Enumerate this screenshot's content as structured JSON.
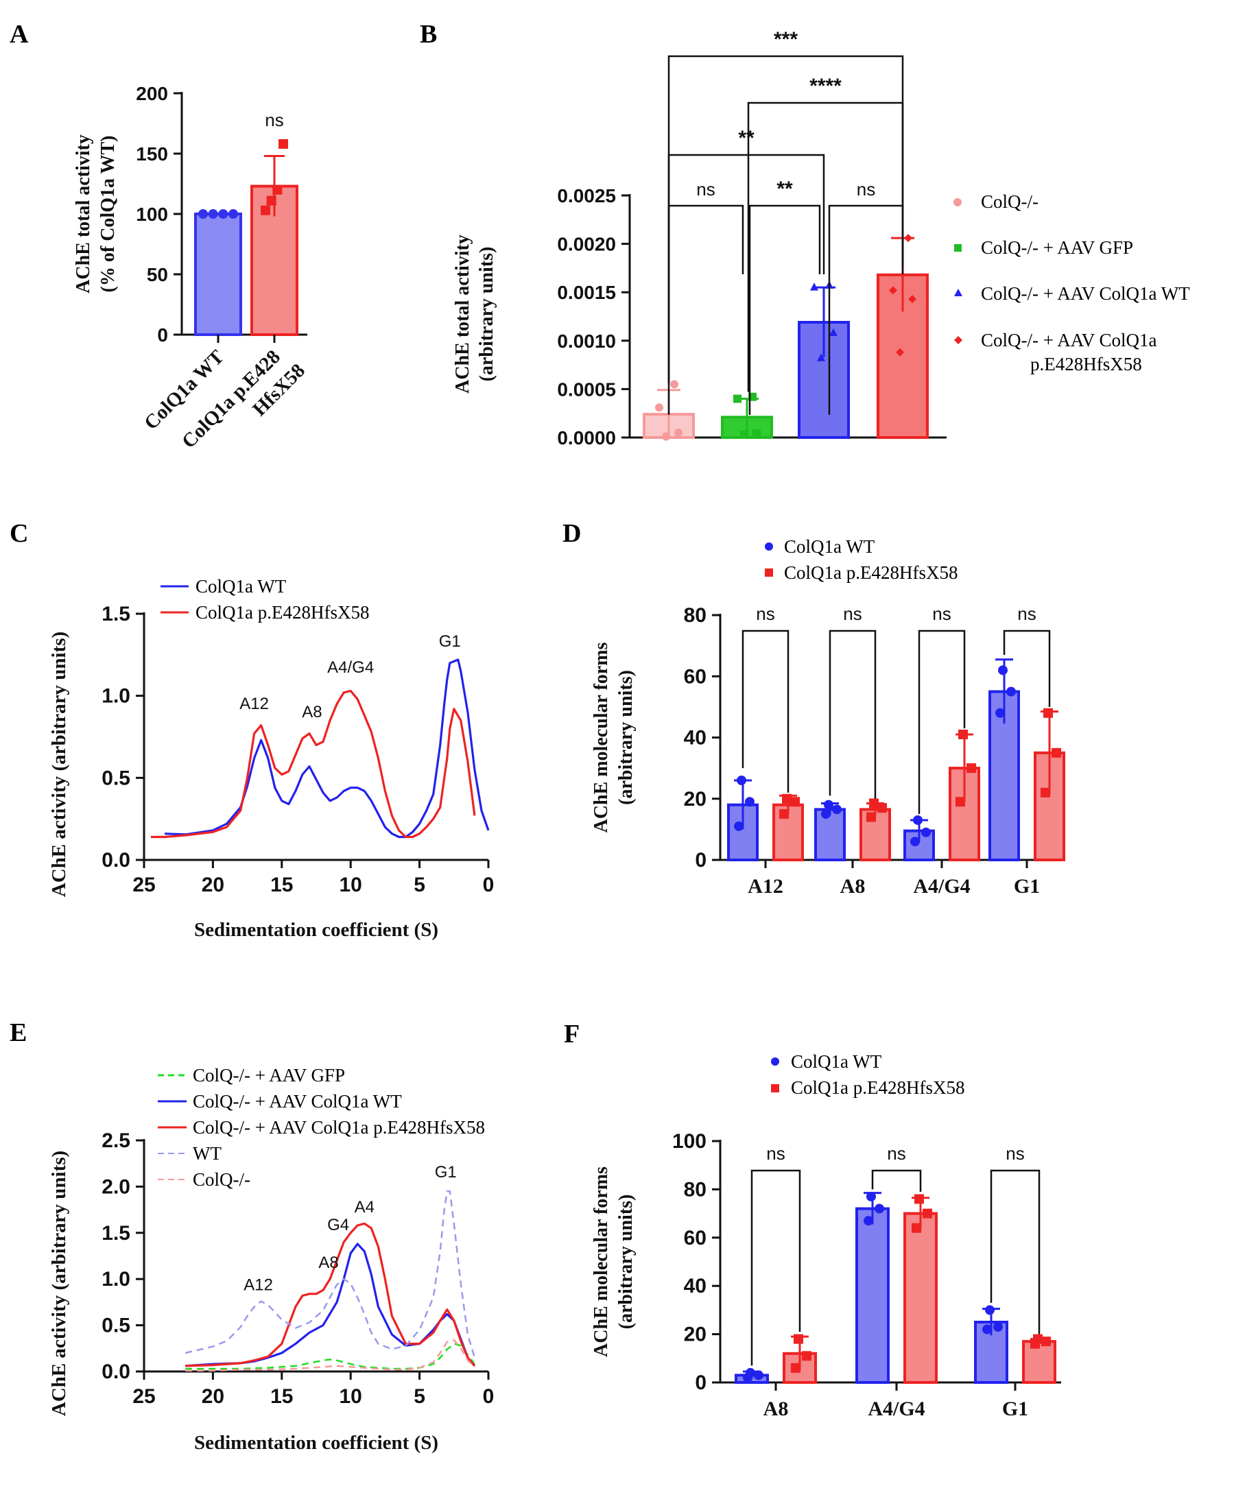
{
  "chart_data": [
    {
      "panel": "A",
      "type": "bar",
      "categories": [
        "ColQ1a WT",
        "ColQ1a p.E428 HfsX58"
      ],
      "category_lines": [
        [
          "ColQ1a WT"
        ],
        [
          "ColQ1a p.E428",
          "HfsX58"
        ]
      ],
      "values": [
        100,
        123
      ],
      "errors": [
        0,
        25
      ],
      "points": [
        [
          100,
          100,
          100,
          100
        ],
        [
          103,
          111,
          120,
          158
        ]
      ],
      "colors": [
        "#3333ee",
        "#ee2222"
      ],
      "fills": [
        "#8a8af5",
        "#f58a8a"
      ],
      "ylabel": [
        "AChE total activity",
        "(% of ColQ1a WT)"
      ],
      "ylim": [
        0,
        200
      ],
      "yticks": [
        "0",
        "50",
        "100",
        "150",
        "200"
      ],
      "significance": [
        {
          "bar": 1,
          "label": "ns"
        }
      ]
    },
    {
      "panel": "B",
      "type": "bar",
      "categories": [
        "ColQ-/-",
        "ColQ-/- + AAV GFP",
        "ColQ-/- + AAV ColQ1a WT",
        "ColQ-/- + AAV ColQ1a p.E428HfsX58"
      ],
      "legend": [
        [
          "ColQ-/-"
        ],
        [
          "ColQ-/- + AAV GFP"
        ],
        [
          "ColQ-/- + AAV ColQ1a WT"
        ],
        [
          "ColQ-/- + AAV ColQ1a",
          "p.E428HfsX58"
        ]
      ],
      "values": [
        0.00024,
        0.00021,
        0.00119,
        0.00168
      ],
      "errors": [
        0.00025,
        0.00019,
        0.00036,
        0.00038
      ],
      "points": [
        [
          1e-05,
          5e-05,
          0.00031,
          0.00055
        ],
        [
          3e-05,
          4e-05,
          0.0004,
          0.00042
        ],
        [
          0.00082,
          0.00108,
          0.00155,
          0.00157
        ],
        [
          0.00088,
          0.00143,
          0.00152,
          0.00206
        ]
      ],
      "colors": [
        "#f59a9a",
        "#22bb22",
        "#2222ee",
        "#ee2222"
      ],
      "fills": [
        "#fac8c8",
        "#30cc30",
        "#7070f0",
        "#f57878"
      ],
      "markers": [
        "circle",
        "square",
        "triangle",
        "diamond"
      ],
      "ylabel": [
        "AChE total activity",
        "(arbitrary units)"
      ],
      "ylim": [
        0,
        0.0025
      ],
      "yticks": [
        "0.0000",
        "0.0005",
        "0.0010",
        "0.0015",
        "0.0020",
        "0.0025"
      ],
      "comparisons": [
        {
          "from": 0,
          "to": 1,
          "label": "ns"
        },
        {
          "from": 1,
          "to": 2,
          "label": "**"
        },
        {
          "from": 2,
          "to": 3,
          "label": "ns"
        },
        {
          "from": 0,
          "to": 2,
          "label": "**"
        },
        {
          "from": 1,
          "to": 3,
          "label": "****"
        },
        {
          "from": 0,
          "to": 3,
          "label": "***"
        }
      ]
    },
    {
      "panel": "C",
      "type": "line",
      "xlabel": "Sedimentation coefficient (S)",
      "ylabel": "AChE activity (arbitrary units)",
      "xlim": [
        25,
        0
      ],
      "ylim": [
        0,
        1.5
      ],
      "xticks": [
        "25",
        "20",
        "15",
        "10",
        "5",
        "0"
      ],
      "yticks": [
        "0.0",
        "0.5",
        "1.0",
        "1.5"
      ],
      "series": [
        {
          "name": "ColQ1a WT",
          "color": "#2222ee",
          "dashed": false,
          "x": [
            23.5,
            22,
            20,
            19,
            18,
            17.5,
            17,
            16.5,
            16,
            15.5,
            15,
            14.5,
            14,
            13.5,
            13,
            12.5,
            12,
            11.5,
            11,
            10.5,
            10,
            9.5,
            9,
            8.5,
            8,
            7.5,
            7,
            6.5,
            6,
            5.5,
            5,
            4.5,
            4,
            3.5,
            3.2,
            3,
            2.8,
            2.5,
            2.2,
            2,
            1.5,
            1,
            0.5,
            0
          ],
          "y": [
            0.16,
            0.155,
            0.18,
            0.22,
            0.32,
            0.45,
            0.62,
            0.73,
            0.62,
            0.44,
            0.36,
            0.34,
            0.42,
            0.52,
            0.57,
            0.49,
            0.41,
            0.36,
            0.38,
            0.42,
            0.44,
            0.44,
            0.42,
            0.36,
            0.28,
            0.2,
            0.16,
            0.14,
            0.14,
            0.17,
            0.22,
            0.3,
            0.4,
            0.7,
            0.95,
            1.1,
            1.2,
            1.21,
            1.22,
            1.15,
            0.9,
            0.55,
            0.3,
            0.18
          ]
        },
        {
          "name": "ColQ1a p.E428HfsX58",
          "color": "#ee2222",
          "dashed": false,
          "x": [
            24.5,
            23.5,
            22,
            20,
            19,
            18,
            17.5,
            17,
            16.5,
            16,
            15.5,
            15,
            14.5,
            14,
            13.5,
            13,
            12.5,
            12,
            11.5,
            11,
            10.5,
            10,
            9.5,
            9,
            8.5,
            8,
            7.5,
            7,
            6.5,
            6,
            5.5,
            5,
            4.5,
            4,
            3.5,
            3,
            2.8,
            2.5,
            2,
            1.5,
            1
          ],
          "y": [
            0.14,
            0.14,
            0.15,
            0.17,
            0.2,
            0.3,
            0.5,
            0.77,
            0.82,
            0.7,
            0.56,
            0.52,
            0.54,
            0.64,
            0.74,
            0.77,
            0.7,
            0.72,
            0.85,
            0.95,
            1.02,
            1.03,
            0.98,
            0.88,
            0.78,
            0.62,
            0.42,
            0.27,
            0.18,
            0.14,
            0.14,
            0.16,
            0.2,
            0.25,
            0.32,
            0.62,
            0.8,
            0.92,
            0.85,
            0.6,
            0.27
          ]
        }
      ],
      "peak_labels": [
        {
          "label": "A12",
          "x": 17.0,
          "y": 0.92
        },
        {
          "label": "A8",
          "x": 12.8,
          "y": 0.87
        },
        {
          "label": "A4/G4",
          "x": 10.0,
          "y": 1.14
        },
        {
          "label": "G1",
          "x": 2.8,
          "y": 1.3
        }
      ]
    },
    {
      "panel": "D",
      "type": "bar",
      "categories": [
        "A12",
        "A8",
        "A4/G4",
        "G1"
      ],
      "series": [
        {
          "name": "ColQ1a WT",
          "values": [
            18,
            16.5,
            9.5,
            55
          ],
          "errors": [
            8,
            2,
            3.5,
            10.5
          ],
          "points": [
            [
              11,
              19,
              26
            ],
            [
              15,
              16.5,
              18
            ],
            [
              6,
              9,
              13
            ],
            [
              48,
              55,
              62
            ]
          ]
        },
        {
          "name": "ColQ1a p.E428HfsX58",
          "values": [
            18,
            16.5,
            30,
            35
          ],
          "errors": [
            3,
            2,
            11,
            13.5
          ],
          "points": [
            [
              15,
              19,
              20
            ],
            [
              14,
              17,
              18.5
            ],
            [
              19,
              30,
              41
            ],
            [
              22,
              35,
              48
            ]
          ]
        }
      ],
      "colors": [
        "#2222ee",
        "#ee2222"
      ],
      "fills": [
        "#8080f2",
        "#f58888"
      ],
      "markers": [
        "circle",
        "square"
      ],
      "ylabel": [
        "AChE molecular forms",
        "(arbitrary units)"
      ],
      "ylim": [
        0,
        80
      ],
      "yticks": [
        "0",
        "20",
        "40",
        "60",
        "80"
      ],
      "significance": [
        "ns",
        "ns",
        "ns",
        "ns"
      ]
    },
    {
      "panel": "E",
      "type": "line",
      "xlabel": "Sedimentation coefficient (S)",
      "ylabel": "AChE activity (arbitrary units)",
      "xlim": [
        25,
        0
      ],
      "ylim": [
        0,
        2.5
      ],
      "xticks": [
        "25",
        "20",
        "15",
        "10",
        "5",
        "0"
      ],
      "yticks": [
        "0.0",
        "0.5",
        "1.0",
        "1.5",
        "2.0",
        "2.5"
      ],
      "series": [
        {
          "name": "ColQ-/- + AAV GFP",
          "color": "#22dd22",
          "dashed": true,
          "x": [
            22,
            20,
            18,
            16,
            14,
            13,
            12,
            11.5,
            11,
            10,
            9,
            8,
            7,
            6,
            5,
            4,
            3.5,
            3,
            2.5,
            2,
            1.5,
            1
          ],
          "y": [
            0.03,
            0.03,
            0.03,
            0.04,
            0.06,
            0.09,
            0.12,
            0.13,
            0.12,
            0.08,
            0.05,
            0.04,
            0.03,
            0.03,
            0.04,
            0.08,
            0.15,
            0.24,
            0.3,
            0.28,
            0.18,
            0.08
          ]
        },
        {
          "name": "ColQ-/- + AAV ColQ1a WT",
          "color": "#2222ee",
          "dashed": false,
          "x": [
            22,
            20,
            18,
            17,
            16,
            15,
            14,
            13,
            12,
            11,
            10.5,
            10,
            9.5,
            9,
            8.5,
            8,
            7,
            6,
            5,
            4,
            3.5,
            3,
            2.5,
            2,
            1.5,
            1
          ],
          "y": [
            0.06,
            0.08,
            0.09,
            0.11,
            0.15,
            0.2,
            0.3,
            0.42,
            0.5,
            0.75,
            1.0,
            1.28,
            1.38,
            1.3,
            1.05,
            0.7,
            0.4,
            0.28,
            0.3,
            0.45,
            0.55,
            0.62,
            0.55,
            0.35,
            0.15,
            0.06
          ]
        },
        {
          "name": "ColQ-/- + AAV ColQ1a p.E428HfsX58",
          "color": "#ee2222",
          "dashed": false,
          "x": [
            22,
            20,
            18,
            17,
            16,
            15,
            14.5,
            14,
            13.5,
            13,
            12.5,
            12,
            11.5,
            11,
            10.5,
            10,
            9.5,
            9,
            8.5,
            8,
            7.5,
            7,
            6,
            5,
            4,
            3.5,
            3,
            2.5,
            2,
            1.5,
            1
          ],
          "y": [
            0.06,
            0.07,
            0.09,
            0.12,
            0.16,
            0.3,
            0.5,
            0.7,
            0.82,
            0.84,
            0.84,
            0.88,
            1.0,
            1.2,
            1.4,
            1.5,
            1.58,
            1.6,
            1.55,
            1.35,
            1.0,
            0.6,
            0.3,
            0.3,
            0.42,
            0.55,
            0.67,
            0.55,
            0.33,
            0.15,
            0.06
          ]
        },
        {
          "name": "WT",
          "color": "#9999ee",
          "dashed": true,
          "x": [
            22,
            20,
            19,
            18,
            17.5,
            17,
            16.5,
            16,
            15,
            14,
            13,
            12,
            11,
            10.5,
            10,
            9.5,
            9,
            8.5,
            8,
            7,
            6,
            5,
            4,
            3.5,
            3.2,
            3,
            2.8,
            2.5,
            2,
            1.5,
            1
          ],
          "y": [
            0.2,
            0.27,
            0.33,
            0.48,
            0.6,
            0.7,
            0.76,
            0.72,
            0.56,
            0.47,
            0.53,
            0.66,
            0.94,
            1.0,
            0.95,
            0.8,
            0.62,
            0.42,
            0.3,
            0.24,
            0.28,
            0.45,
            0.8,
            1.3,
            1.75,
            1.95,
            1.95,
            1.6,
            0.95,
            0.4,
            0.15
          ]
        },
        {
          "name": "ColQ-/-",
          "color": "#f59a9a",
          "dashed": true,
          "x": [
            22,
            20,
            18,
            16,
            14,
            12,
            11,
            10,
            9,
            8,
            7,
            6,
            5,
            4,
            3.5,
            3,
            2.5,
            2,
            1.5,
            1
          ],
          "y": [
            0.01,
            0.01,
            0.02,
            0.02,
            0.03,
            0.05,
            0.06,
            0.05,
            0.04,
            0.03,
            0.02,
            0.02,
            0.04,
            0.1,
            0.2,
            0.32,
            0.34,
            0.25,
            0.12,
            0.05
          ]
        }
      ],
      "peak_labels": [
        {
          "label": "A12",
          "x": 16.7,
          "y": 0.88
        },
        {
          "label": "A8",
          "x": 11.6,
          "y": 1.12
        },
        {
          "label": "G4",
          "x": 10.9,
          "y": 1.53
        },
        {
          "label": "A4",
          "x": 9.0,
          "y": 1.72
        },
        {
          "label": "G1",
          "x": 3.1,
          "y": 2.1
        }
      ]
    },
    {
      "panel": "F",
      "type": "bar",
      "categories": [
        "A8",
        "A4/G4",
        "G1"
      ],
      "series": [
        {
          "name": "ColQ1a WT",
          "values": [
            3,
            72,
            25
          ],
          "errors": [
            1.5,
            6.5,
            5.5
          ],
          "points": [
            [
              2,
              3,
              4
            ],
            [
              67,
              72,
              77
            ],
            [
              22,
              23,
              30
            ]
          ]
        },
        {
          "name": "ColQ1a p.E428HfsX58",
          "values": [
            12,
            70,
            17
          ],
          "errors": [
            7,
            6.5,
            1
          ],
          "points": [
            [
              6,
              11,
              18
            ],
            [
              64,
              70,
              76
            ],
            [
              16,
              17,
              18
            ]
          ]
        }
      ],
      "colors": [
        "#2222ee",
        "#ee2222"
      ],
      "fills": [
        "#8080f2",
        "#f58888"
      ],
      "markers": [
        "circle",
        "square"
      ],
      "ylabel": [
        "AChE molecular forms",
        "(arbitrary units)"
      ],
      "ylim": [
        0,
        100
      ],
      "yticks": [
        "0",
        "20",
        "40",
        "60",
        "80",
        "100"
      ],
      "significance": [
        "ns",
        "ns",
        "ns"
      ]
    }
  ]
}
